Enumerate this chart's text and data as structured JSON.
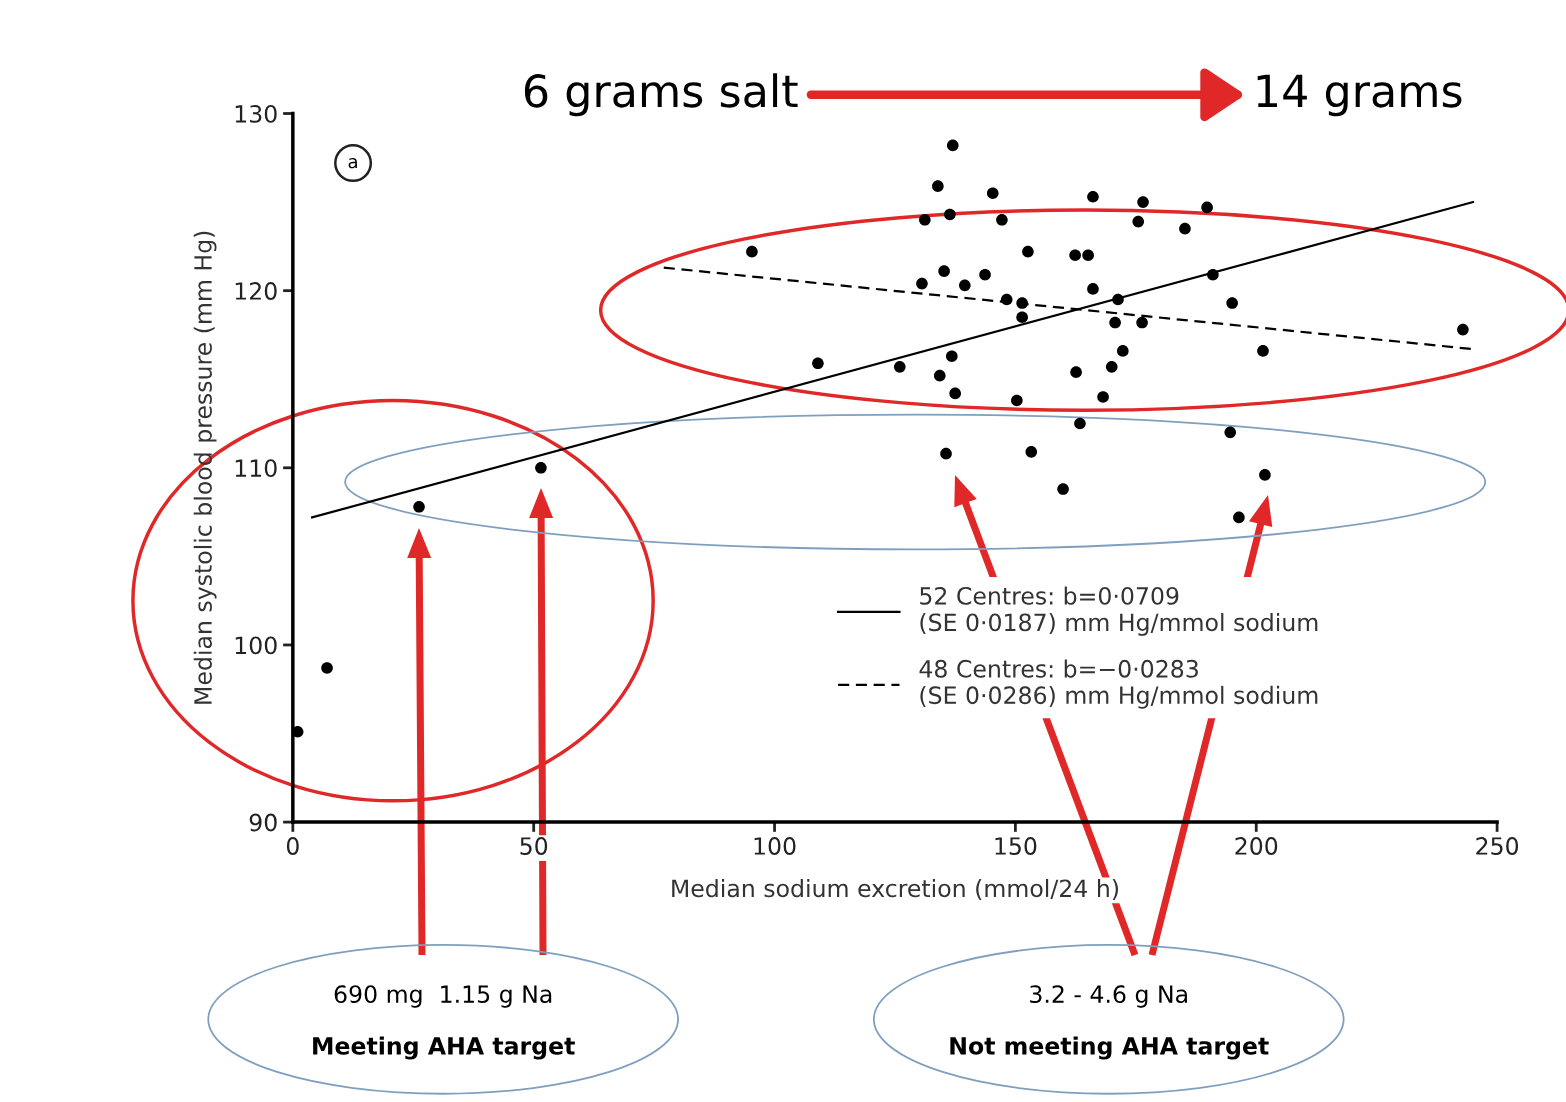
{
  "chart_data": {
    "type": "scatter",
    "xlabel": "Median sodium excretion (mmol/24 h)",
    "ylabel": "Median systolic blood pressure (mm Hg)",
    "xlim": [
      0,
      250
    ],
    "xticks": [
      0,
      50,
      100,
      150,
      200,
      250
    ],
    "ylim": [
      90,
      130
    ],
    "yticks": [
      90,
      100,
      110,
      120,
      130
    ],
    "grid": false,
    "legend": "bottom right",
    "marker": "circle",
    "series": [
      {
        "color": "#000000",
        "x": [
          1.0,
          7.1,
          26.2,
          51.5,
          95.3,
          137.0,
          133.9,
          145.3,
          166.1,
          176.5,
          189.8,
          131.2,
          136.4,
          147.2,
          175.5,
          185.2,
          152.6,
          162.4,
          165.1,
          135.2,
          143.7,
          130.6,
          139.5,
          166.1,
          148.2,
          151.4,
          151.4,
          171.3,
          170.7,
          176.3,
          191.0,
          172.3,
          170.0,
          136.8,
          109.0,
          126.0,
          134.3,
          162.6,
          137.5,
          150.3,
          168.2,
          163.4,
          135.6,
          153.3,
          159.9,
          195.0,
          242.9,
          201.4,
          194.6,
          201.8,
          196.4
        ],
        "values": [
          95.1,
          98.7,
          107.8,
          110.0,
          122.2,
          128.2,
          125.9,
          125.5,
          125.3,
          125.0,
          124.7,
          124.0,
          124.3,
          124.0,
          123.9,
          123.5,
          122.2,
          122.0,
          122.0,
          121.1,
          120.9,
          120.4,
          120.3,
          120.1,
          119.5,
          119.3,
          118.5,
          119.5,
          118.2,
          118.2,
          120.9,
          116.6,
          115.7,
          116.3,
          115.9,
          115.7,
          115.2,
          115.4,
          114.2,
          113.8,
          114.0,
          112.5,
          110.8,
          110.9,
          108.8,
          119.3,
          117.8,
          116.6,
          112.0,
          109.6,
          107.2
        ]
      },
      {
        "type": "line",
        "name": "52 Centres: b=0·0709\n(SE 0·0187) mm Hg/mmol sodium",
        "color": "#000000",
        "line_style": "solid",
        "marker": "none",
        "x": [
          4,
          245
        ],
        "values": [
          107.2,
          125.0
        ]
      },
      {
        "type": "line",
        "name": "48 Centres: b=−0·0283\n(SE 0·0286) mm Hg/mmol sodium",
        "color": "#000000",
        "line_style": "dashed",
        "marker": "none",
        "x": [
          77,
          245
        ],
        "values": [
          121.3,
          116.7
        ]
      }
    ],
    "annotations": [
      "a",
      "6 grams salt",
      "14 grams",
      "690 mg  1.15 g Na",
      "Meeting AHA target",
      "3.2 - 4.6 g Na",
      "Not meeting AHA target"
    ]
  }
}
